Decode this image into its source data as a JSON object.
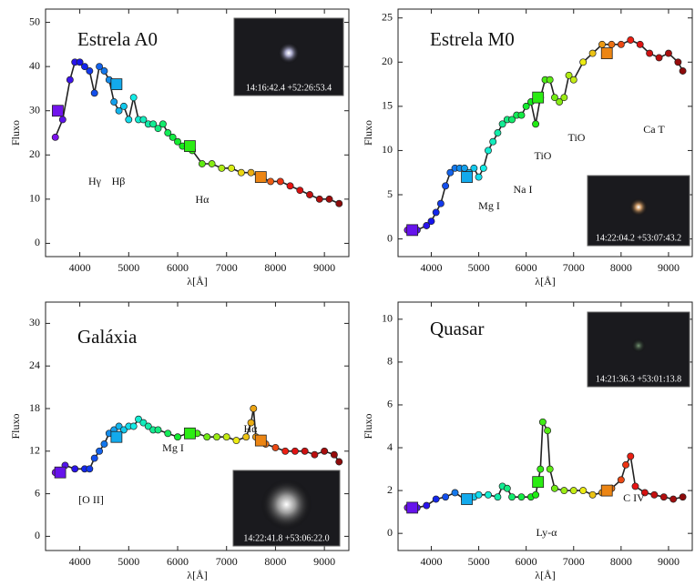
{
  "chart_data": [
    {
      "type": "line",
      "title": "Estrela A0",
      "x_label": "λ[Å]",
      "y_label": "Fluxo",
      "colormap": "rainbow",
      "line_color": "#222222",
      "xlim": [
        3300,
        9500
      ],
      "xticks": [
        4000,
        5000,
        6000,
        7000,
        8000,
        9000
      ],
      "ylim": [
        -3,
        53
      ],
      "yticks": [
        0,
        10,
        20,
        30,
        40,
        50
      ],
      "narrowband": {
        "x": [
          3500,
          3650,
          3800,
          3900,
          4000,
          4100,
          4200,
          4300,
          4400,
          4500,
          4600,
          4700,
          4800,
          4900,
          5000,
          5100,
          5200,
          5300,
          5400,
          5500,
          5600,
          5700,
          5800,
          5900,
          6000,
          6100,
          6200,
          6300,
          6500,
          6700,
          6900,
          7100,
          7300,
          7500,
          7700,
          7900,
          8100,
          8300,
          8500,
          8700,
          8900,
          9100,
          9300
        ],
        "values": [
          24,
          28,
          37,
          41,
          41,
          40,
          39,
          34,
          40,
          39,
          37,
          32,
          30,
          31,
          28,
          33,
          28,
          28,
          27,
          27,
          26,
          27,
          25,
          24,
          23,
          22,
          22,
          21,
          18,
          18,
          17,
          17,
          16,
          16,
          15,
          14,
          14,
          13,
          12,
          11,
          10,
          10,
          9
        ]
      },
      "broadband": {
        "x": [
          3550,
          4750,
          6250,
          7700
        ],
        "values": [
          30,
          36,
          22,
          15
        ]
      },
      "annotations": [
        "Hγ",
        "Hβ",
        "Hα"
      ],
      "inset_label": "14:16:42.4 +52:26:53.4"
    },
    {
      "type": "line",
      "title": "Estrela M0",
      "x_label": "λ[Å]",
      "y_label": "Fluxo",
      "colormap": "rainbow",
      "line_color": "#222222",
      "xlim": [
        3300,
        9500
      ],
      "xticks": [
        4000,
        5000,
        6000,
        7000,
        8000,
        9000
      ],
      "ylim": [
        -2,
        26
      ],
      "yticks": [
        0,
        5,
        10,
        15,
        20,
        25
      ],
      "narrowband": {
        "x": [
          3500,
          3700,
          3900,
          4000,
          4100,
          4200,
          4300,
          4400,
          4500,
          4600,
          4700,
          4800,
          4900,
          5000,
          5100,
          5200,
          5300,
          5400,
          5500,
          5600,
          5700,
          5800,
          5900,
          6000,
          6100,
          6200,
          6300,
          6400,
          6500,
          6600,
          6700,
          6800,
          6900,
          7000,
          7200,
          7400,
          7600,
          7800,
          8000,
          8200,
          8400,
          8600,
          8800,
          9000,
          9200,
          9300
        ],
        "values": [
          1,
          1,
          1.5,
          2,
          3,
          4,
          6,
          7.5,
          8,
          8,
          8,
          7.5,
          8,
          7,
          8,
          10,
          11,
          12,
          13,
          13.5,
          13.5,
          14,
          14,
          15,
          15.5,
          13,
          16,
          18,
          18,
          16,
          15.5,
          16,
          18.5,
          18,
          20,
          21,
          22,
          22,
          22,
          22.5,
          22,
          21,
          20.5,
          21,
          20,
          19
        ]
      },
      "broadband": {
        "x": [
          3600,
          4750,
          6250,
          7700
        ],
        "values": [
          1,
          7,
          16,
          21
        ]
      },
      "annotations": [
        "Mg I",
        "Na I",
        "TiO",
        "TiO",
        "Ca T"
      ],
      "inset_label": "14:22:04.2 +53:07:43.2"
    },
    {
      "type": "line",
      "title": "Galáxia",
      "x_label": "λ[Å]",
      "y_label": "Fluxo",
      "colormap": "rainbow",
      "line_color": "#222222",
      "xlim": [
        3300,
        9500
      ],
      "xticks": [
        4000,
        5000,
        6000,
        7000,
        8000,
        9000
      ],
      "ylim": [
        -2,
        33
      ],
      "yticks": [
        0,
        6,
        12,
        18,
        24,
        30
      ],
      "narrowband": {
        "x": [
          3500,
          3700,
          3900,
          4100,
          4200,
          4300,
          4400,
          4500,
          4600,
          4700,
          4800,
          4900,
          5000,
          5100,
          5200,
          5300,
          5400,
          5500,
          5600,
          5800,
          6000,
          6200,
          6400,
          6600,
          6800,
          7000,
          7200,
          7400,
          7500,
          7550,
          7600,
          7800,
          8000,
          8200,
          8400,
          8600,
          8800,
          9000,
          9200,
          9300
        ],
        "values": [
          9,
          10,
          9.5,
          9.5,
          9.5,
          11,
          12,
          13,
          14.5,
          15,
          15.5,
          15,
          15.5,
          15.5,
          16.5,
          16,
          15.5,
          15,
          15,
          14.5,
          14,
          14.5,
          14.5,
          14,
          14,
          14,
          13.5,
          14,
          16,
          18,
          14,
          13,
          12.5,
          12,
          12,
          12,
          11.5,
          12,
          11.5,
          10.5
        ]
      },
      "broadband": {
        "x": [
          3600,
          4750,
          6250,
          7700
        ],
        "values": [
          9,
          14,
          14.5,
          13.5
        ]
      },
      "annotations": [
        "[O II]",
        "Mg I",
        "Hα"
      ],
      "inset_label": "14:22:41.8 +53:06:22.0"
    },
    {
      "type": "line",
      "title": "Quasar",
      "x_label": "λ[Å]",
      "y_label": "Fluxo",
      "colormap": "rainbow",
      "line_color": "#222222",
      "xlim": [
        3300,
        9500
      ],
      "xticks": [
        4000,
        5000,
        6000,
        7000,
        8000,
        9000
      ],
      "ylim": [
        -0.8,
        10.8
      ],
      "yticks": [
        0,
        2,
        4,
        6,
        8,
        10
      ],
      "narrowband": {
        "x": [
          3500,
          3700,
          3900,
          4100,
          4300,
          4500,
          4700,
          4900,
          5000,
          5200,
          5400,
          5500,
          5600,
          5700,
          5900,
          6100,
          6200,
          6300,
          6350,
          6450,
          6500,
          6600,
          6800,
          7000,
          7200,
          7400,
          7600,
          7800,
          8000,
          8100,
          8200,
          8300,
          8500,
          8700,
          8900,
          9100,
          9300
        ],
        "values": [
          1.2,
          1.2,
          1.3,
          1.6,
          1.7,
          1.9,
          1.6,
          1.7,
          1.8,
          1.8,
          1.7,
          2.2,
          2.1,
          1.7,
          1.7,
          1.7,
          1.8,
          3,
          5.2,
          4.8,
          3,
          2.1,
          2,
          2,
          2,
          1.8,
          1.9,
          2.1,
          2.5,
          3.2,
          3.6,
          2.2,
          1.9,
          1.8,
          1.7,
          1.6,
          1.7
        ]
      },
      "broadband": {
        "x": [
          3600,
          4750,
          6250,
          7700
        ],
        "values": [
          1.2,
          1.6,
          2.4,
          2
        ]
      },
      "annotations": [
        "Ly-α",
        "C IV"
      ],
      "inset_label": "14:21:36.3 +53:01:13.8"
    }
  ]
}
